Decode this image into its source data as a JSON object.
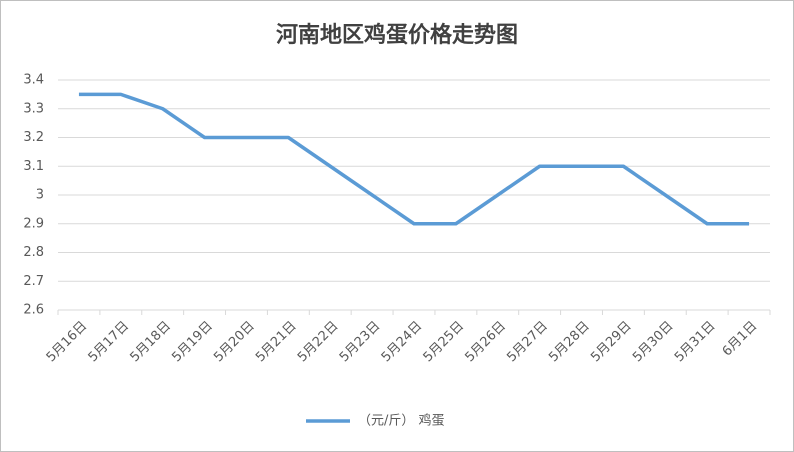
{
  "chart_data": {
    "type": "line",
    "title": "河南地区鸡蛋价格走势图",
    "categories": [
      "5月16日",
      "5月17日",
      "5月18日",
      "5月19日",
      "5月20日",
      "5月21日",
      "5月22日",
      "5月23日",
      "5月24日",
      "5月25日",
      "5月26日",
      "5月27日",
      "5月28日",
      "5月29日",
      "5月30日",
      "5月31日",
      "6月1日"
    ],
    "series": [
      {
        "name": "（元/斤） 鸡蛋",
        "color": "#5b9bd5",
        "values": [
          3.35,
          3.35,
          3.3,
          3.2,
          3.2,
          3.2,
          3.1,
          3.0,
          2.9,
          2.9,
          3.0,
          3.1,
          3.1,
          3.1,
          3.0,
          2.9,
          2.9
        ]
      }
    ],
    "ylim": [
      2.6,
      3.4
    ],
    "yticks": [
      2.6,
      2.7,
      2.8,
      2.9,
      3,
      3.1,
      3.2,
      3.3,
      3.4
    ],
    "grid": true,
    "legend": "bottom"
  }
}
